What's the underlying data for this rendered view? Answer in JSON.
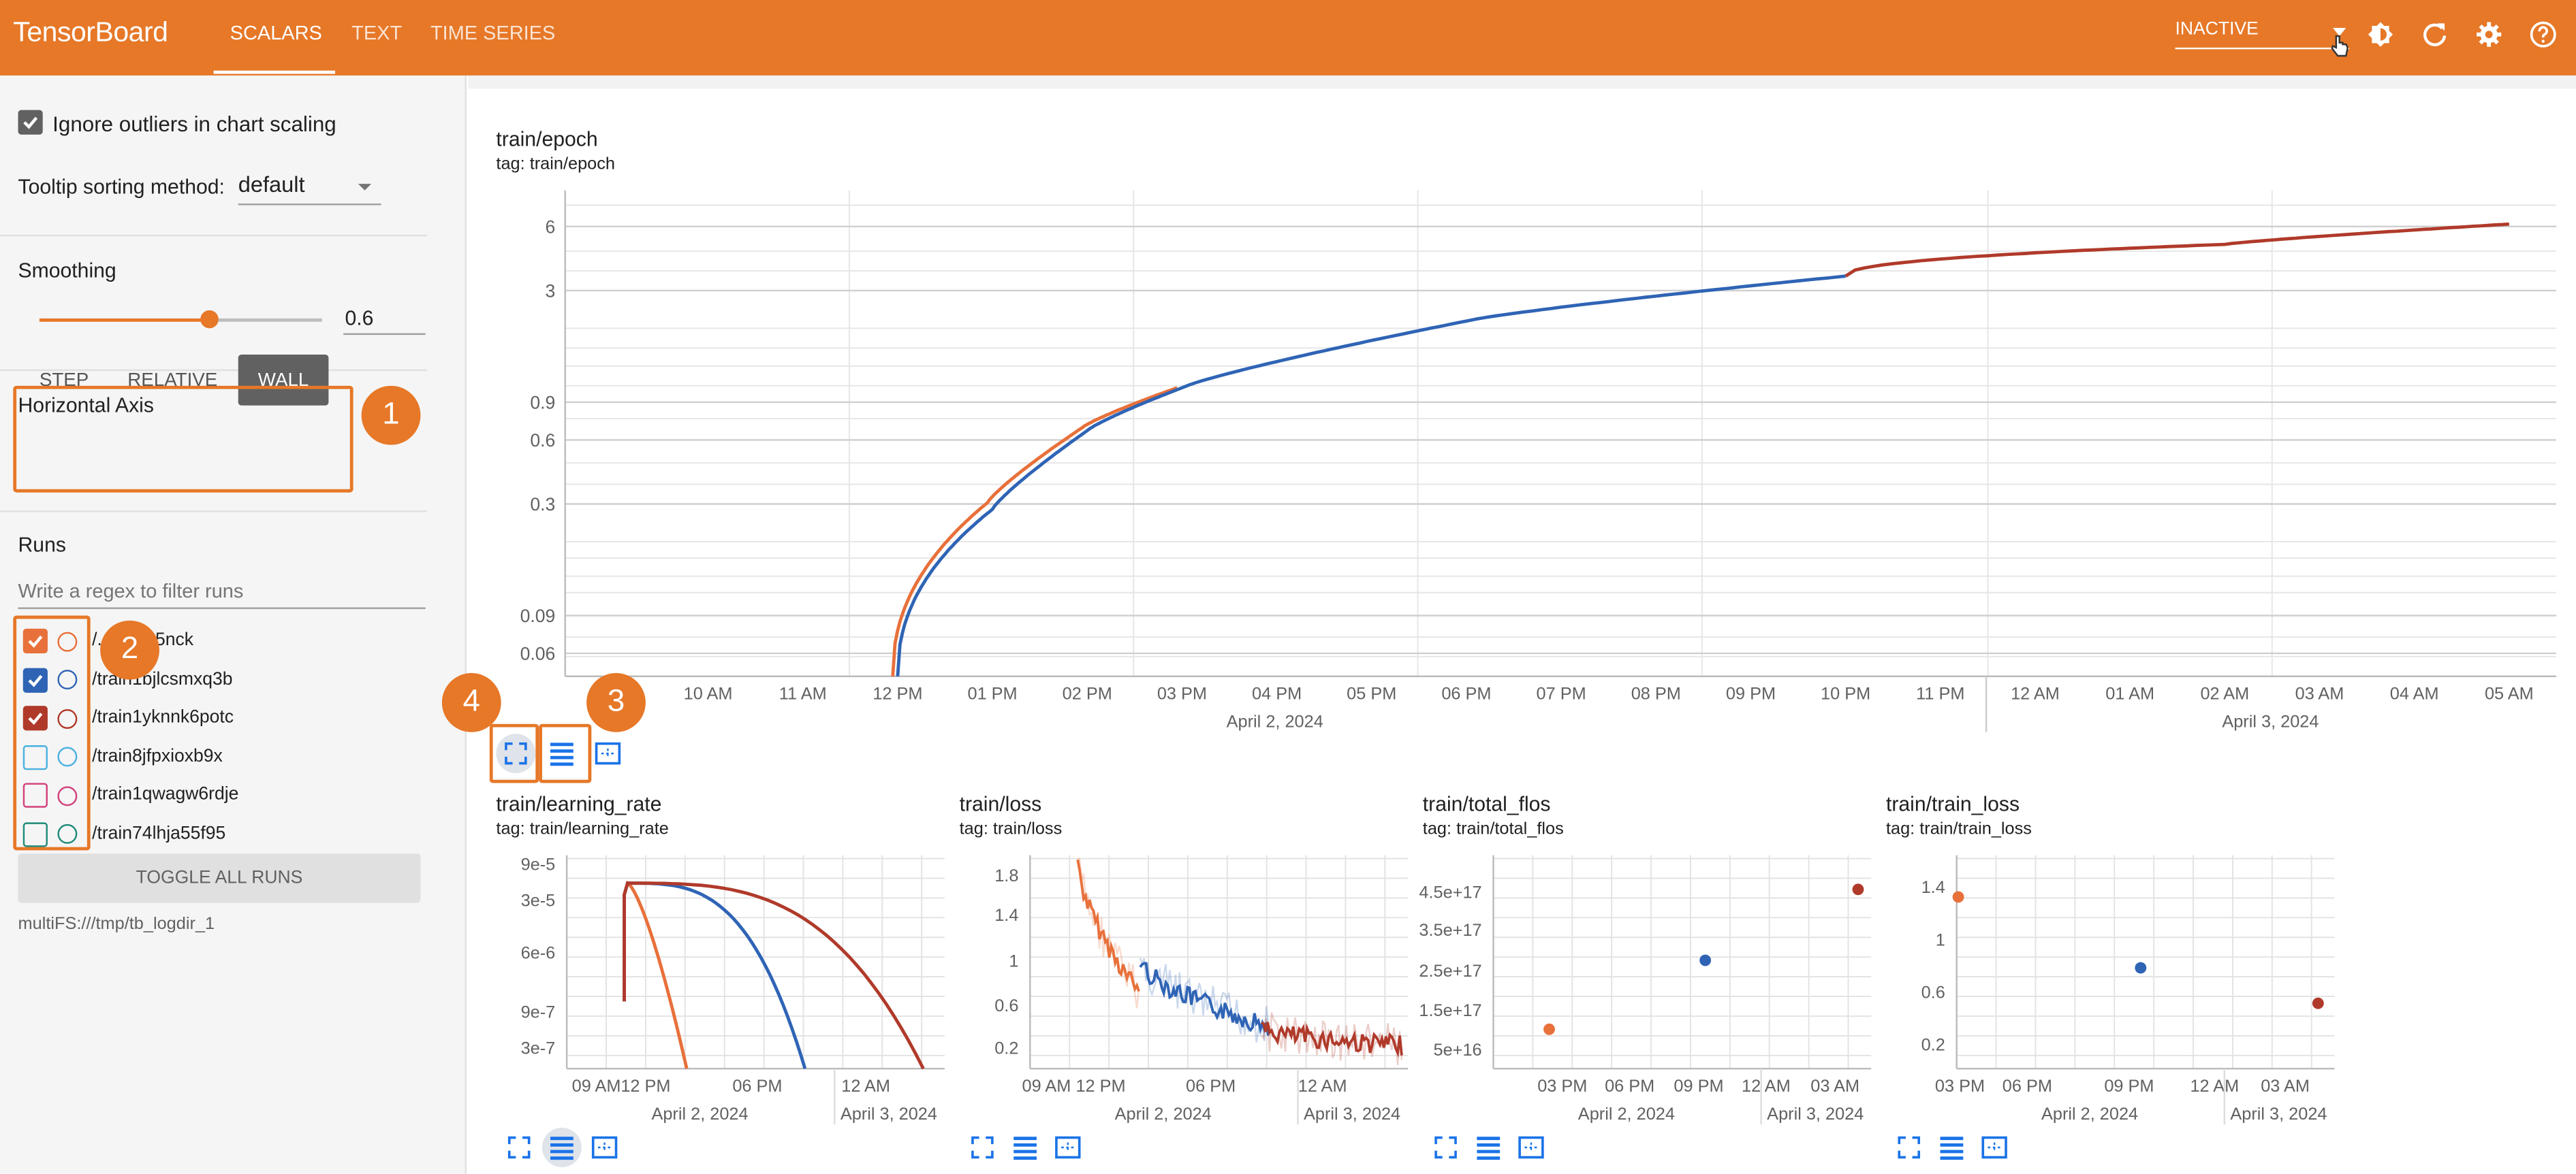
{
  "app": {
    "brand": "TensorBoard"
  },
  "tabs": [
    {
      "label": "SCALARS"
    },
    {
      "label": "TEXT"
    },
    {
      "label": "TIME SERIES"
    }
  ],
  "status": {
    "selected": "INACTIVE"
  },
  "sidebar": {
    "ignore_outliers": {
      "label": "Ignore outliers in chart scaling",
      "checked": true
    },
    "tooltip_sorting": {
      "label": "Tooltip sorting method:",
      "value": "default"
    },
    "smoothing": {
      "label": "Smoothing",
      "value": "0.6",
      "level": 0.6
    },
    "horizontal_axis": {
      "label": "Horizontal Axis",
      "options": [
        "STEP",
        "RELATIVE",
        "WALL"
      ],
      "selected": "WALL"
    },
    "runs": {
      "label": "Runs",
      "filter_placeholder": "Write a regex to filter runs",
      "items": [
        {
          "name": "/...5lzba5nck",
          "checked": true,
          "color": "#e8703a"
        },
        {
          "name": "/train1bjlcsmxq3b",
          "checked": true,
          "color": "#2f64b5"
        },
        {
          "name": "/train1yknnk6potc",
          "checked": true,
          "color": "#b03a2a"
        },
        {
          "name": "/train8jfpxioxb9x",
          "checked": false,
          "color": "#4ab0e0"
        },
        {
          "name": "/train1qwagw6rdje",
          "checked": false,
          "color": "#d2407a"
        },
        {
          "name": "/train74lhja55f95",
          "checked": false,
          "color": "#1f8a78"
        }
      ],
      "toggle_all": "TOGGLE ALL RUNS"
    },
    "logdir": "multiFS:///tmp/tb_logdir_1"
  },
  "annotations": [
    "1",
    "2",
    "3",
    "4"
  ],
  "colors": {
    "accent": "#e67828",
    "run1": "#e8703a",
    "run2": "#2f64b5",
    "run3": "#b03a2a"
  },
  "charts": {
    "epoch": {
      "title": "train/epoch",
      "tag": "tag: train/epoch"
    },
    "lr": {
      "title": "train/learning_rate",
      "tag": "tag: train/learning_rate"
    },
    "loss": {
      "title": "train/loss",
      "tag": "tag: train/loss"
    },
    "flos": {
      "title": "train/total_flos",
      "tag": "tag: train/total_flos"
    },
    "trainloss": {
      "title": "train/train_loss",
      "tag": "tag: train/train_loss"
    }
  },
  "chart_data": [
    {
      "name": "train/epoch",
      "type": "line",
      "ylabel_scale": "log",
      "y_ticks": [
        "6",
        "3",
        "0.9",
        "0.6",
        "0.3",
        "0.09",
        "0.06"
      ],
      "x_ticks": [
        "10 AM",
        "11 AM",
        "12 PM",
        "01 PM",
        "02 PM",
        "03 PM",
        "04 PM",
        "05 PM",
        "06 PM",
        "07 PM",
        "08 PM",
        "09 PM",
        "10 PM",
        "11 PM",
        "12 AM",
        "01 AM",
        "02 AM",
        "03 AM",
        "04 AM",
        "05 AM"
      ],
      "x_dates": [
        "April 2, 2024",
        "April 3, 2024"
      ],
      "series": [
        {
          "color": "#e8703a",
          "x": [
            "12 PM",
            "01 PM",
            "02 PM",
            "03 PM"
          ],
          "y": [
            0.05,
            0.3,
            0.65,
            0.98
          ]
        },
        {
          "color": "#2f64b5",
          "x": [
            "12 PM",
            "01 PM",
            "02 PM",
            "03 PM",
            "06 PM",
            "10 PM"
          ],
          "y": [
            0.05,
            0.28,
            0.63,
            0.98,
            1.95,
            3.1
          ]
        },
        {
          "color": "#b03a2a",
          "x": [
            "10 PM",
            "02 AM",
            "05 AM"
          ],
          "y": [
            3.1,
            4.3,
            5.3
          ]
        }
      ]
    },
    {
      "name": "train/learning_rate",
      "type": "line",
      "y_ticks": [
        "9e-5",
        "3e-5",
        "6e-6",
        "9e-7",
        "3e-7"
      ],
      "x_ticks": [
        "09 AM",
        "12 PM",
        "06 PM",
        "12 AM"
      ],
      "x_dates": [
        "April 2, 2024",
        "April 3, 2024"
      ],
      "series": [
        {
          "color": "#e8703a",
          "x": [
            "12 PM",
            "01 PM",
            "02 PM"
          ],
          "y": [
            5e-05,
            3e-05,
            1e-07
          ]
        },
        {
          "color": "#2f64b5",
          "x": [
            "12 PM",
            "06 PM",
            "10 PM"
          ],
          "y": [
            5e-05,
            2e-05,
            1e-07
          ]
        },
        {
          "color": "#b03a2a",
          "x": [
            "12 PM",
            "06 PM",
            "12 AM",
            "05 AM"
          ],
          "y": [
            5e-05,
            4e-05,
            1.5e-05,
            1e-07
          ]
        }
      ]
    },
    {
      "name": "train/loss",
      "type": "line",
      "y_ticks": [
        "1.8",
        "1.4",
        "1",
        "0.6",
        "0.2"
      ],
      "x_ticks": [
        "09 AM",
        "12 PM",
        "06 PM",
        "12 AM"
      ],
      "x_dates": [
        "April 2, 2024",
        "April 3, 2024"
      ],
      "series": [
        {
          "color": "#e8703a",
          "x": [
            "12 PM",
            "01 PM",
            "03 PM"
          ],
          "y": [
            1.8,
            1.1,
            0.8
          ]
        },
        {
          "color": "#2f64b5",
          "x": [
            "03 PM",
            "06 PM",
            "10 PM"
          ],
          "y": [
            0.8,
            0.6,
            0.45
          ]
        },
        {
          "color": "#b03a2a",
          "x": [
            "10 PM",
            "02 AM",
            "05 AM"
          ],
          "y": [
            0.35,
            0.25,
            0.22
          ]
        }
      ]
    },
    {
      "name": "train/total_flos",
      "type": "scatter",
      "y_ticks": [
        "4.5e+17",
        "3.5e+17",
        "2.5e+17",
        "1.5e+17",
        "5e+16"
      ],
      "x_ticks": [
        "03 PM",
        "06 PM",
        "09 PM",
        "12 AM",
        "03 AM"
      ],
      "x_dates": [
        "April 2, 2024",
        "April 3, 2024"
      ],
      "points": [
        {
          "color": "#e8703a",
          "x": "03 PM",
          "y": 1e+17
        },
        {
          "color": "#2f64b5",
          "x": "09 PM",
          "y": 2.75e+17
        },
        {
          "color": "#b03a2a",
          "x": "04 AM",
          "y": 4.55e+17
        }
      ]
    },
    {
      "name": "train/train_loss",
      "type": "scatter",
      "y_ticks": [
        "1.4",
        "1",
        "0.6",
        "0.2"
      ],
      "x_ticks": [
        "03 PM",
        "06 PM",
        "09 PM",
        "12 AM",
        "03 AM"
      ],
      "x_dates": [
        "April 2, 2024",
        "April 3, 2024"
      ],
      "points": [
        {
          "color": "#e8703a",
          "x": "03 PM",
          "y": 1.32
        },
        {
          "color": "#2f64b5",
          "x": "09 PM",
          "y": 0.78
        },
        {
          "color": "#b03a2a",
          "x": "04 AM",
          "y": 0.51
        }
      ]
    }
  ]
}
